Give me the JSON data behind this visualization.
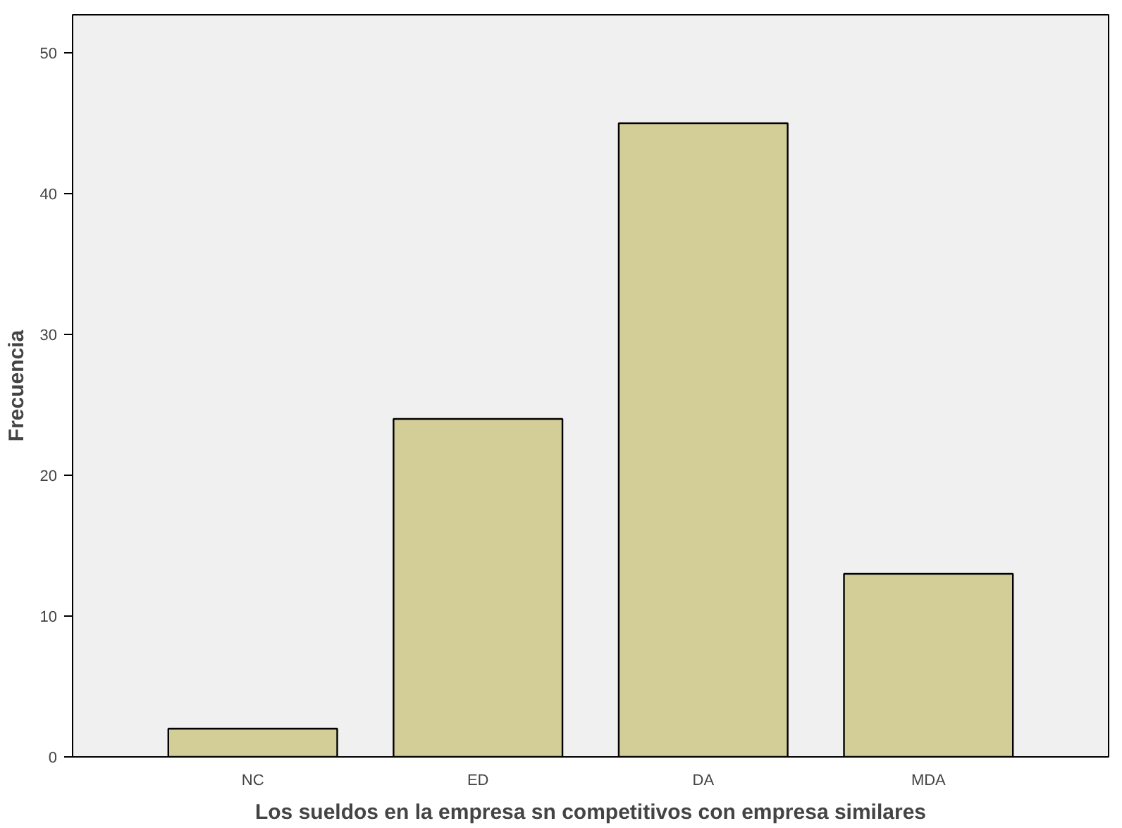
{
  "chart_data": {
    "type": "bar",
    "xlabel": "Los sueldos en la empresa sn competitivos con empresa similares",
    "ylabel": "Frecuencia",
    "categories": [
      "NC",
      "ED",
      "DA",
      "MDA"
    ],
    "values": [
      2,
      24,
      45,
      13
    ],
    "color": "#d3ce97",
    "ylim": [
      0,
      52.7
    ],
    "yticks": [
      0,
      10,
      20,
      30,
      40,
      50
    ],
    "grid": false
  }
}
